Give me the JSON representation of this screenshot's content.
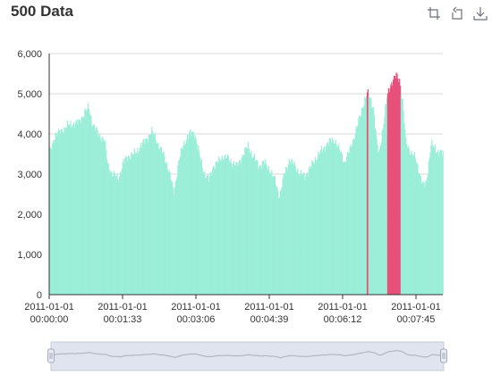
{
  "toolbox": {
    "icons": [
      "zoom-select-icon",
      "zoom-reset-icon",
      "save-image-icon"
    ]
  },
  "colors": {
    "bar": "#9beed8",
    "highlight": "#e6507a",
    "grid": "#d8d8d8",
    "axis": "#333333",
    "slider_bg": "#dfe4ee",
    "slider_line": "#aab0be"
  },
  "chart_data": {
    "type": "bar",
    "title": "500 Data",
    "xlabel": "",
    "ylabel": "",
    "ylim": [
      0,
      6000
    ],
    "y_ticks": [
      0,
      1000,
      2000,
      3000,
      4000,
      5000,
      6000
    ],
    "y_tick_labels": [
      "0",
      "1,000",
      "2,000",
      "3,000",
      "4,000",
      "5,000",
      "6,000"
    ],
    "x_ticks": [
      0,
      93,
      186,
      279,
      372,
      465
    ],
    "x_tick_labels": [
      [
        "2011-01-01",
        "00:00:00"
      ],
      [
        "2011-01-01",
        "00:01:33"
      ],
      [
        "2011-01-01",
        "00:03:06"
      ],
      [
        "2011-01-01",
        "00:04:39"
      ],
      [
        "2011-01-01",
        "00:06:12"
      ],
      [
        "2011-01-01",
        "00:07:45"
      ]
    ],
    "x_range_seconds": [
      0,
      499
    ],
    "sample_interval_seconds": 1,
    "grid": true,
    "highlight_rule": "value > 5000 highlighted",
    "zoom_slider": "bottom",
    "keypoints": [
      [
        0,
        3500
      ],
      [
        8,
        4000
      ],
      [
        14,
        4050
      ],
      [
        22,
        4200
      ],
      [
        30,
        4250
      ],
      [
        38,
        4300
      ],
      [
        45,
        4550
      ],
      [
        50,
        4650
      ],
      [
        55,
        4250
      ],
      [
        62,
        4000
      ],
      [
        70,
        3850
      ],
      [
        74,
        3250
      ],
      [
        80,
        3000
      ],
      [
        88,
        2900
      ],
      [
        94,
        3300
      ],
      [
        100,
        3450
      ],
      [
        108,
        3500
      ],
      [
        116,
        3700
      ],
      [
        124,
        3900
      ],
      [
        130,
        4050
      ],
      [
        134,
        3950
      ],
      [
        140,
        3650
      ],
      [
        146,
        3450
      ],
      [
        152,
        3050
      ],
      [
        158,
        2550
      ],
      [
        164,
        3300
      ],
      [
        170,
        3750
      ],
      [
        178,
        4000
      ],
      [
        184,
        4050
      ],
      [
        190,
        3500
      ],
      [
        196,
        3050
      ],
      [
        202,
        2850
      ],
      [
        208,
        3200
      ],
      [
        214,
        3300
      ],
      [
        220,
        3450
      ],
      [
        226,
        3400
      ],
      [
        232,
        3300
      ],
      [
        238,
        3200
      ],
      [
        246,
        3500
      ],
      [
        252,
        3700
      ],
      [
        258,
        3450
      ],
      [
        266,
        3200
      ],
      [
        272,
        3300
      ],
      [
        280,
        3100
      ],
      [
        286,
        2850
      ],
      [
        292,
        2450
      ],
      [
        298,
        3000
      ],
      [
        304,
        3350
      ],
      [
        310,
        3250
      ],
      [
        318,
        3000
      ],
      [
        324,
        2950
      ],
      [
        332,
        3200
      ],
      [
        338,
        3400
      ],
      [
        346,
        3600
      ],
      [
        354,
        3800
      ],
      [
        362,
        3850
      ],
      [
        368,
        3600
      ],
      [
        374,
        3300
      ],
      [
        380,
        3550
      ],
      [
        386,
        3900
      ],
      [
        392,
        4300
      ],
      [
        398,
        4750
      ],
      [
        403,
        5000
      ],
      [
        407,
        4900
      ],
      [
        411,
        4650
      ],
      [
        415,
        3800
      ],
      [
        418,
        3500
      ],
      [
        424,
        4300
      ],
      [
        428,
        4900
      ],
      [
        432,
        5200
      ],
      [
        436,
        5350
      ],
      [
        440,
        5450
      ],
      [
        444,
        5350
      ],
      [
        448,
        4800
      ],
      [
        452,
        3800
      ],
      [
        458,
        3550
      ],
      [
        464,
        3400
      ],
      [
        470,
        3000
      ],
      [
        474,
        2700
      ],
      [
        478,
        2800
      ],
      [
        484,
        3750
      ],
      [
        490,
        3600
      ],
      [
        496,
        3550
      ],
      [
        499,
        3500
      ]
    ]
  }
}
